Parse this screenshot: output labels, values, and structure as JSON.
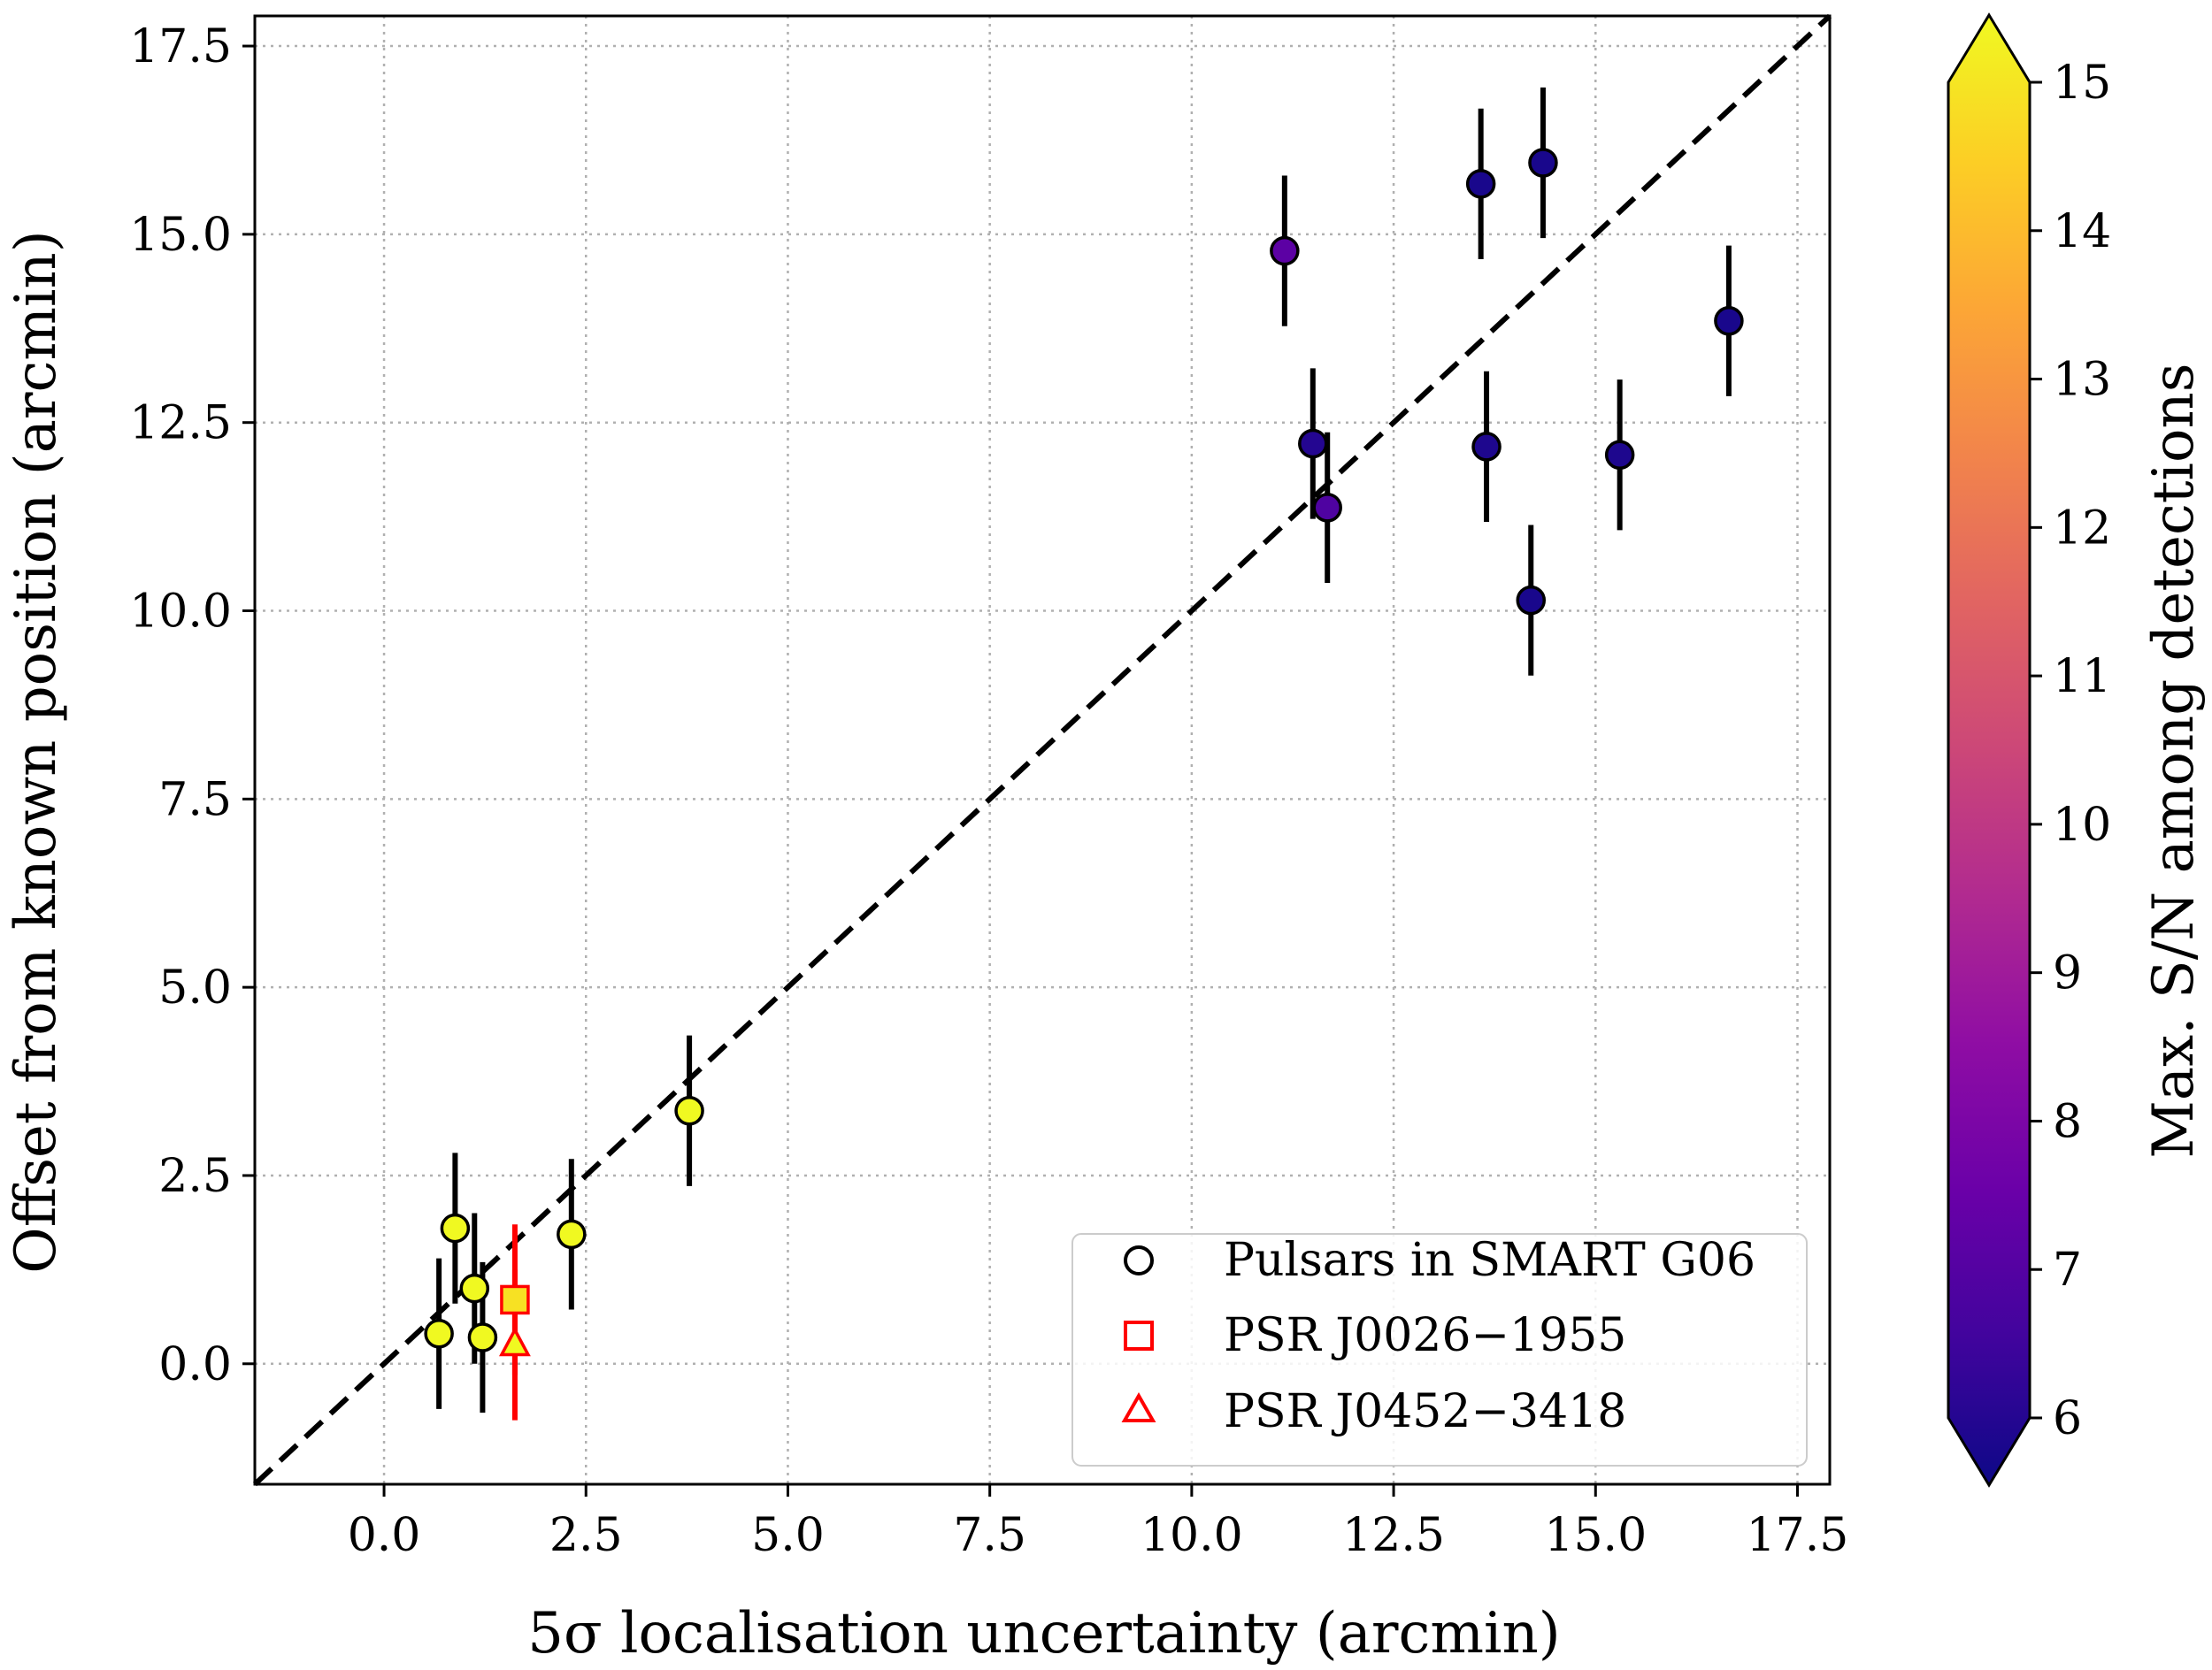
{
  "chart_data": {
    "type": "scatter",
    "xlabel": "5σ localisation uncertainty (arcmin)",
    "ylabel": "Offset from known position (arcmin)",
    "xlim": [
      -1.6,
      17.9
    ],
    "ylim": [
      -1.6,
      17.9
    ],
    "xticks": [
      "0.0",
      "2.5",
      "5.0",
      "7.5",
      "10.0",
      "12.5",
      "15.0",
      "17.5"
    ],
    "yticks": [
      "0.0",
      "2.5",
      "5.0",
      "7.5",
      "10.0",
      "12.5",
      "15.0",
      "17.5"
    ],
    "grid": true,
    "reference_line": "y = x, black dashed",
    "colorbar": {
      "label": "Max. S/N among detections",
      "min": 6,
      "max": 15,
      "ticks": [
        "6",
        "7",
        "8",
        "9",
        "10",
        "11",
        "12",
        "13",
        "14",
        "15"
      ],
      "colormap": "plasma",
      "extend": "both"
    },
    "legend": {
      "placement": "lower-right",
      "entries": [
        {
          "label": "Pulsars in SMART G06",
          "marker": "circle",
          "color": "#000000"
        },
        {
          "label": "PSR J0026−1955",
          "marker": "square",
          "color": "#ff0000"
        },
        {
          "label": "PSR J0452−3418",
          "marker": "triangle",
          "color": "#ff0000"
        }
      ]
    },
    "series": [
      {
        "name": "Pulsars in SMART G06",
        "marker": "circle",
        "points": [
          {
            "x": 0.68,
            "y": 0.4,
            "err": 1.0,
            "sn": 15
          },
          {
            "x": 0.88,
            "y": 1.8,
            "err": 1.0,
            "sn": 15
          },
          {
            "x": 1.12,
            "y": 1.0,
            "err": 1.0,
            "sn": 15
          },
          {
            "x": 1.22,
            "y": 0.35,
            "err": 1.0,
            "sn": 15
          },
          {
            "x": 2.32,
            "y": 1.72,
            "err": 1.0,
            "sn": 15
          },
          {
            "x": 3.78,
            "y": 3.36,
            "err": 1.0,
            "sn": 15
          },
          {
            "x": 11.15,
            "y": 14.78,
            "err": 1.0,
            "sn": 7.5
          },
          {
            "x": 11.5,
            "y": 12.22,
            "err": 1.0,
            "sn": 6.4
          },
          {
            "x": 11.68,
            "y": 11.37,
            "err": 1.0,
            "sn": 7.2
          },
          {
            "x": 13.58,
            "y": 15.67,
            "err": 1.0,
            "sn": 6.2
          },
          {
            "x": 13.65,
            "y": 12.18,
            "err": 1.0,
            "sn": 6.3
          },
          {
            "x": 14.2,
            "y": 10.14,
            "err": 1.0,
            "sn": 6.2
          },
          {
            "x": 14.35,
            "y": 15.95,
            "err": 1.0,
            "sn": 6.2
          },
          {
            "x": 15.3,
            "y": 12.07,
            "err": 1.0,
            "sn": 6.3
          },
          {
            "x": 16.65,
            "y": 13.85,
            "err": 1.0,
            "sn": 6.2
          }
        ]
      },
      {
        "name": "PSR J0026−1955",
        "marker": "square",
        "points": [
          {
            "x": 1.62,
            "y": 0.85,
            "err": 1.0,
            "sn": 14.5
          }
        ]
      },
      {
        "name": "PSR J0452−3418",
        "marker": "triangle",
        "points": [
          {
            "x": 1.62,
            "y": 0.25,
            "err": 1.0,
            "sn": 15
          }
        ]
      }
    ]
  }
}
